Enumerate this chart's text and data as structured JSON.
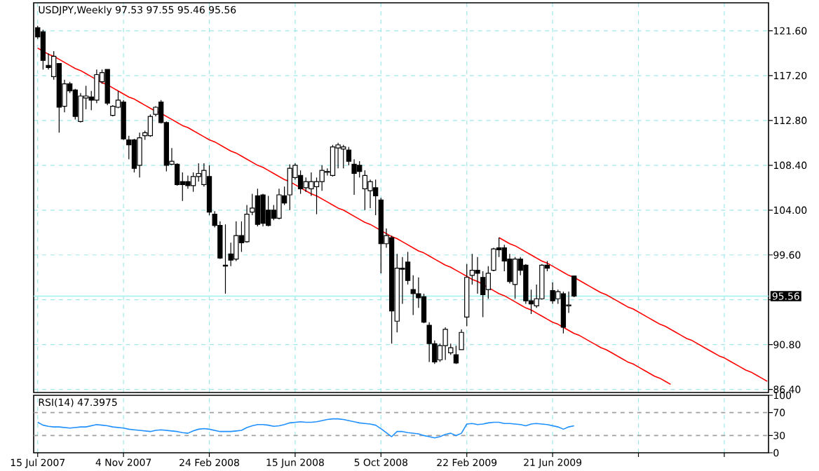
{
  "chart_data": [
    {
      "type": "candlestick",
      "title": "USDJPY,Weekly 97.53 97.55 95.46 95.56",
      "categories": [
        null,
        null,
        null,
        null,
        null,
        null,
        null,
        null,
        null,
        null,
        null,
        null,
        null,
        null,
        null,
        null,
        null,
        null,
        null,
        null,
        null,
        null,
        null,
        null,
        null,
        null,
        null,
        null,
        null,
        null,
        null,
        null,
        null,
        null,
        null,
        null,
        null,
        null,
        null,
        null,
        null,
        null,
        null,
        null,
        null,
        null,
        null,
        null,
        null,
        null,
        null,
        null,
        null,
        null,
        null,
        null,
        null,
        null,
        null,
        null,
        null,
        null,
        null,
        null,
        null,
        null,
        null,
        null,
        null,
        null,
        null,
        null,
        null,
        null,
        null,
        null,
        null,
        null,
        null,
        null,
        null,
        null,
        null,
        null,
        null,
        null,
        null,
        null,
        null,
        null,
        null,
        null,
        null,
        null,
        null,
        null,
        null,
        null,
        null,
        null,
        null,
        null,
        null,
        null,
        null,
        null,
        null,
        null,
        null,
        null,
        null,
        null,
        null,
        null,
        null,
        null,
        null,
        null,
        null,
        null,
        null,
        null,
        null,
        null,
        null,
        null,
        null,
        null,
        null,
        null,
        null,
        null,
        null,
        null,
        null,
        null,
        null
      ],
      "ohlc": [
        [
          121.9,
          122.1,
          120.8,
          121.0
        ],
        [
          121.5,
          121.7,
          117.8,
          118.7
        ],
        [
          118.2,
          119.4,
          117.8,
          118.0
        ],
        [
          117.1,
          119.6,
          116.8,
          119.1
        ],
        [
          118.4,
          118.4,
          111.6,
          114.1
        ],
        [
          114.2,
          116.8,
          113.6,
          116.4
        ],
        [
          116.4,
          116.6,
          115.5,
          115.7
        ],
        [
          115.8,
          115.9,
          112.9,
          113.2
        ],
        [
          112.7,
          115.5,
          112.6,
          115.2
        ],
        [
          115.0,
          116.2,
          113.9,
          115.2
        ],
        [
          115.1,
          115.7,
          113.8,
          114.8
        ],
        [
          114.8,
          117.8,
          114.5,
          117.3
        ],
        [
          116.6,
          117.8,
          116.4,
          117.5
        ],
        [
          117.8,
          117.8,
          114.3,
          114.5
        ],
        [
          113.3,
          114.3,
          113.2,
          114.2
        ],
        [
          114.1,
          115.7,
          114.0,
          114.8
        ],
        [
          114.6,
          114.8,
          110.9,
          111.0
        ],
        [
          110.9,
          111.3,
          109.0,
          110.4
        ],
        [
          110.9,
          111.0,
          107.7,
          108.1
        ],
        [
          108.4,
          111.6,
          107.2,
          111.1
        ],
        [
          111.3,
          111.8,
          110.9,
          111.6
        ],
        [
          111.3,
          113.4,
          111.2,
          113.2
        ],
        [
          113.4,
          114.2,
          113.2,
          114.1
        ],
        [
          114.6,
          114.8,
          112.5,
          112.6
        ],
        [
          112.6,
          112.7,
          107.8,
          108.4
        ],
        [
          108.5,
          110.1,
          108.4,
          108.8
        ],
        [
          108.5,
          108.6,
          106.4,
          106.5
        ],
        [
          106.8,
          107.7,
          104.9,
          106.5
        ],
        [
          106.8,
          107.4,
          106.1,
          106.4
        ],
        [
          106.4,
          107.7,
          105.8,
          107.3
        ],
        [
          107.3,
          108.6,
          106.8,
          107.6
        ],
        [
          106.5,
          108.6,
          106.3,
          107.9
        ],
        [
          107.3,
          108.4,
          103.5,
          103.8
        ],
        [
          103.6,
          103.9,
          102.3,
          102.5
        ],
        [
          102.5,
          102.9,
          99.2,
          99.3
        ],
        [
          98.6,
          102.6,
          95.8,
          98.5
        ],
        [
          99.7,
          100.8,
          98.5,
          99.1
        ],
        [
          99.2,
          102.9,
          99.0,
          101.5
        ],
        [
          101.5,
          102.9,
          99.9,
          100.8
        ],
        [
          100.9,
          104.5,
          100.8,
          103.6
        ],
        [
          103.8,
          105.6,
          103.5,
          104.2
        ],
        [
          105.4,
          106.1,
          102.4,
          102.6
        ],
        [
          105.5,
          105.6,
          102.4,
          102.7
        ],
        [
          104.0,
          105.4,
          102.4,
          102.5
        ],
        [
          104.0,
          104.5,
          103.0,
          103.2
        ],
        [
          103.2,
          106.1,
          103.1,
          105.5
        ],
        [
          105.4,
          106.3,
          104.5,
          104.7
        ],
        [
          105.5,
          108.5,
          104.0,
          108.1
        ],
        [
          107.2,
          108.6,
          107.0,
          108.4
        ],
        [
          107.4,
          107.9,
          105.6,
          106.1
        ],
        [
          106.2,
          107.2,
          105.8,
          106.8
        ],
        [
          106.1,
          107.7,
          105.4,
          106.8
        ],
        [
          106.3,
          107.2,
          103.6,
          106.8
        ],
        [
          106.8,
          108.4,
          105.9,
          107.9
        ],
        [
          107.7,
          108.1,
          107.4,
          107.8
        ],
        [
          107.4,
          110.4,
          107.3,
          110.2
        ],
        [
          110.1,
          110.6,
          108.1,
          110.4
        ],
        [
          110.0,
          110.4,
          108.1,
          110.2
        ],
        [
          109.9,
          110.2,
          108.4,
          108.8
        ],
        [
          108.5,
          109.0,
          105.5,
          107.6
        ],
        [
          108.4,
          108.8,
          107.2,
          107.8
        ],
        [
          106.1,
          107.9,
          104.0,
          107.4
        ],
        [
          105.9,
          107.0,
          104.2,
          106.8
        ],
        [
          106.2,
          107.0,
          103.5,
          105.4
        ],
        [
          105.0,
          105.2,
          97.8,
          100.7
        ],
        [
          100.7,
          102.2,
          100.3,
          101.5
        ],
        [
          101.3,
          101.5,
          90.9,
          94.1
        ],
        [
          93.1,
          99.7,
          92.0,
          98.3
        ],
        [
          98.3,
          99.4,
          94.8,
          98.2
        ],
        [
          98.9,
          99.9,
          96.7,
          97.1
        ],
        [
          96.2,
          97.6,
          93.7,
          95.8
        ],
        [
          95.8,
          97.4,
          94.4,
          95.4
        ],
        [
          95.5,
          95.8,
          92.9,
          93.0
        ],
        [
          92.7,
          93.0,
          89.1,
          90.9
        ],
        [
          90.9,
          91.2,
          88.9,
          89.1
        ],
        [
          89.3,
          90.9,
          89.1,
          90.7
        ],
        [
          90.7,
          92.5,
          89.3,
          92.3
        ],
        [
          90.0,
          90.9,
          89.8,
          90.5
        ],
        [
          89.8,
          90.7,
          88.9,
          89.0
        ],
        [
          90.3,
          92.3,
          90.3,
          92.0
        ],
        [
          93.5,
          98.7,
          92.6,
          97.4
        ],
        [
          97.6,
          99.7,
          96.7,
          98.1
        ],
        [
          98.1,
          99.4,
          95.8,
          97.8
        ],
        [
          97.4,
          98.0,
          93.5,
          95.7
        ],
        [
          96.2,
          98.5,
          95.3,
          97.8
        ],
        [
          98.1,
          100.3,
          98.0,
          100.2
        ],
        [
          100.3,
          101.3,
          99.4,
          100.1
        ],
        [
          100.3,
          100.6,
          98.0,
          99.0
        ],
        [
          99.2,
          99.7,
          96.8,
          97.0
        ],
        [
          96.7,
          99.4,
          95.3,
          99.2
        ],
        [
          99.2,
          99.4,
          97.6,
          98.1
        ],
        [
          98.6,
          98.7,
          94.8,
          95.1
        ],
        [
          95.1,
          96.2,
          93.8,
          94.8
        ],
        [
          94.6,
          96.7,
          94.4,
          95.3
        ],
        [
          95.3,
          98.7,
          95.2,
          98.6
        ],
        [
          98.6,
          99.0,
          98.0,
          98.3
        ],
        [
          96.1,
          96.9,
          94.8,
          95.1
        ],
        [
          95.3,
          96.2,
          94.8,
          96.0
        ],
        [
          95.8,
          96.0,
          91.9,
          92.5
        ],
        [
          94.6,
          96.0,
          93.9,
          94.7
        ],
        [
          97.53,
          97.55,
          95.46,
          95.56
        ],
        null,
        null,
        null,
        null,
        null,
        null,
        null,
        null,
        null,
        null,
        null,
        null,
        null,
        null,
        null,
        null,
        null,
        null,
        null,
        null,
        null,
        null,
        null,
        null,
        null,
        null,
        null,
        null,
        null,
        null,
        null,
        null,
        null,
        null,
        null,
        null
      ],
      "series": [
        {
          "type": "line",
          "color": "#ff0000",
          "values": [
            119.9,
            119.6,
            119.3,
            119.1,
            118.8,
            118.5,
            118.2,
            117.9,
            117.7,
            117.4,
            117.1,
            116.8,
            116.5,
            116.3,
            116.0,
            115.7,
            115.4,
            115.1,
            114.9,
            114.6,
            114.3,
            114.0,
            113.7,
            113.5,
            113.2,
            112.9,
            112.6,
            112.3,
            112.1,
            111.8,
            111.5,
            111.2,
            110.9,
            110.7,
            110.4,
            110.1,
            109.8,
            109.6,
            109.3,
            109.0,
            108.7,
            108.4,
            108.2,
            107.9,
            107.6,
            107.3,
            107.0,
            106.8,
            106.5,
            106.2,
            105.9,
            105.6,
            105.4,
            105.1,
            104.8,
            104.5,
            104.2,
            104.0,
            103.7,
            103.4,
            103.1,
            102.8,
            102.6,
            102.3,
            102.0,
            101.7,
            101.4,
            101.2,
            100.9,
            100.6,
            100.3,
            100.0,
            99.8,
            99.5,
            99.2,
            98.9,
            98.6,
            98.4,
            98.1,
            97.8,
            97.5,
            97.2,
            97.0,
            96.7,
            96.4,
            96.1,
            95.8,
            95.6,
            95.3,
            95.0,
            94.7,
            94.4,
            94.2,
            93.9,
            93.6,
            93.3,
            93.0,
            92.8,
            92.5,
            92.2,
            91.9,
            91.7,
            91.4,
            91.1,
            90.8,
            90.5,
            90.3,
            90.0,
            89.7,
            89.4,
            89.1,
            88.9,
            88.6,
            88.3,
            88.0,
            87.7,
            87.5,
            87.2,
            86.9,
            null,
            null,
            null,
            null,
            null,
            null,
            null,
            null,
            null,
            null,
            null,
            null,
            null,
            null,
            null,
            null,
            null,
            null
          ]
        },
        {
          "type": "line",
          "color": "#ff0000",
          "values": [
            null,
            null,
            null,
            null,
            null,
            null,
            null,
            null,
            null,
            null,
            null,
            null,
            null,
            null,
            null,
            null,
            null,
            null,
            null,
            null,
            null,
            null,
            null,
            null,
            null,
            null,
            null,
            null,
            null,
            null,
            null,
            null,
            null,
            null,
            null,
            null,
            null,
            null,
            null,
            null,
            null,
            null,
            null,
            null,
            null,
            null,
            null,
            null,
            null,
            null,
            null,
            null,
            null,
            null,
            null,
            null,
            null,
            null,
            null,
            null,
            null,
            null,
            null,
            null,
            null,
            null,
            null,
            null,
            null,
            null,
            null,
            null,
            null,
            null,
            null,
            null,
            null,
            null,
            null,
            null,
            null,
            null,
            null,
            null,
            null,
            null,
            101.3,
            101.0,
            100.7,
            100.5,
            100.2,
            99.9,
            99.6,
            99.3,
            99.0,
            98.8,
            98.5,
            98.2,
            97.9,
            97.6,
            97.4,
            97.1,
            96.8,
            96.5,
            96.2,
            95.9,
            95.7,
            95.4,
            95.1,
            94.8,
            94.5,
            94.3,
            94.0,
            93.7,
            93.4,
            93.1,
            92.8,
            92.6,
            92.3,
            92.0,
            91.7,
            91.4,
            91.2,
            90.9,
            90.6,
            90.3,
            90.0,
            89.7,
            89.5,
            89.2,
            88.9,
            88.6,
            88.3,
            88.1,
            87.8,
            87.5,
            87.2
          ]
        }
      ],
      "ylim": [
        86.1,
        124.35
      ],
      "yticks": [
        {
          "value": 121.6,
          "label": "121.60"
        },
        {
          "value": 117.2,
          "label": "117.20"
        },
        {
          "value": 112.8,
          "label": "112.80"
        },
        {
          "value": 108.4,
          "label": "108.40"
        },
        {
          "value": 104.0,
          "label": "104.00"
        },
        {
          "value": 99.6,
          "label": "99.60"
        },
        {
          "value": 95.2,
          "label": null
        },
        {
          "value": 90.8,
          "label": "90.80"
        },
        {
          "value": 86.4,
          "label": "86.40"
        }
      ],
      "grid": true,
      "tick_labels": "y",
      "ref_lines": [
        {
          "axis": "y",
          "value": 95.56,
          "label": "95.56",
          "color": "#a0f0f0"
        }
      ]
    },
    {
      "type": "line",
      "title": "RSI(14) 47.3975",
      "categories": [
        "15 Jul 2007",
        null,
        null,
        null,
        null,
        null,
        null,
        null,
        null,
        null,
        null,
        null,
        null,
        null,
        null,
        null,
        "4 Nov 2007",
        null,
        null,
        null,
        null,
        null,
        null,
        null,
        null,
        null,
        null,
        null,
        null,
        null,
        null,
        null,
        "24 Feb 2008",
        null,
        null,
        null,
        null,
        null,
        null,
        null,
        null,
        null,
        null,
        null,
        null,
        null,
        null,
        null,
        "15 Jun 2008",
        null,
        null,
        null,
        null,
        null,
        null,
        null,
        null,
        null,
        null,
        null,
        null,
        null,
        null,
        null,
        "5 Oct 2008",
        null,
        null,
        null,
        null,
        null,
        null,
        null,
        null,
        null,
        null,
        null,
        null,
        null,
        null,
        null,
        "22 Feb 2009",
        null,
        null,
        null,
        null,
        null,
        null,
        null,
        null,
        null,
        null,
        null,
        null,
        null,
        null,
        null,
        "21 Jun 2009",
        null,
        null,
        null,
        null,
        null,
        null,
        null,
        null,
        null,
        null,
        null,
        null,
        null,
        null,
        null,
        null,
        null,
        null,
        null,
        null,
        null,
        null,
        null,
        null,
        null,
        null,
        null,
        null,
        null,
        null,
        null,
        null,
        null,
        null,
        null,
        null,
        null,
        null,
        null,
        null
      ],
      "color": "#1e90ff",
      "values": [
        53,
        48,
        46,
        45,
        45,
        44,
        43,
        44,
        45,
        45,
        47,
        49,
        48,
        47,
        45,
        44,
        43,
        41,
        40,
        39,
        38,
        37,
        39,
        40,
        39,
        38,
        37,
        35,
        34,
        38,
        41,
        42,
        41,
        39,
        37,
        37,
        37,
        38,
        39,
        44,
        47,
        49,
        49,
        48,
        46,
        47,
        49,
        52,
        53,
        54,
        53,
        53,
        54,
        56,
        58,
        59,
        59,
        58,
        56,
        54,
        52,
        51,
        50,
        48,
        42,
        35,
        28,
        37,
        37,
        35,
        34,
        33,
        30,
        28,
        26,
        28,
        32,
        34,
        30,
        34,
        50,
        51,
        49,
        50,
        52,
        53,
        53,
        51,
        51,
        50,
        49,
        47,
        50,
        51,
        50,
        49,
        47,
        45,
        41,
        45,
        47,
        null,
        null,
        null,
        null,
        null,
        null,
        null,
        null,
        null,
        null,
        null,
        null,
        null,
        null,
        null,
        null,
        null,
        null,
        null,
        null,
        null,
        null,
        null,
        null,
        null,
        null,
        null,
        null,
        null,
        null,
        null,
        null,
        null,
        null,
        null,
        null
      ],
      "ylim": [
        0,
        100
      ],
      "yticks": [
        0,
        30,
        70,
        100
      ],
      "grid": "x",
      "ref_lines": [
        {
          "axis": "y",
          "value": 30,
          "color": "#a0a0a0",
          "line_style": "dashed"
        },
        {
          "axis": "y",
          "value": 70,
          "color": "#a0a0a0",
          "line_style": "dashed"
        }
      ]
    }
  ]
}
